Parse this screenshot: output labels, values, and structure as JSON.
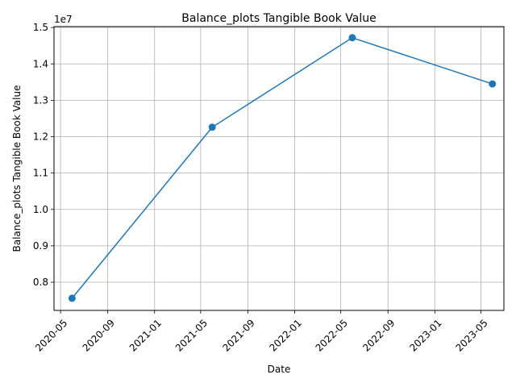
{
  "chart_data": {
    "type": "line",
    "title": "Balance_plots Tangible Book Value",
    "xlabel": "Date",
    "ylabel": "Balance_plots Tangible Book Value",
    "y_offset_label": "1e7",
    "y_scale": 10000000,
    "grid": true,
    "x_ticks": [
      "2020-05",
      "2020-09",
      "2021-01",
      "2021-05",
      "2021-09",
      "2022-01",
      "2022-05",
      "2022-09",
      "2023-01",
      "2023-05"
    ],
    "y_ticks": [
      0.8,
      0.9,
      1.0,
      1.1,
      1.2,
      1.3,
      1.4,
      1.5
    ],
    "xlim": [
      "2020-04-14",
      "2023-06-30"
    ],
    "ylim": [
      0.7225,
      1.5025
    ],
    "series": [
      {
        "color": "#1f77b4",
        "x": [
          "2020-05-31",
          "2021-05-31",
          "2022-05-31",
          "2023-05-31"
        ],
        "values": [
          7560000,
          12260000,
          14720000,
          13450000
        ]
      }
    ]
  }
}
